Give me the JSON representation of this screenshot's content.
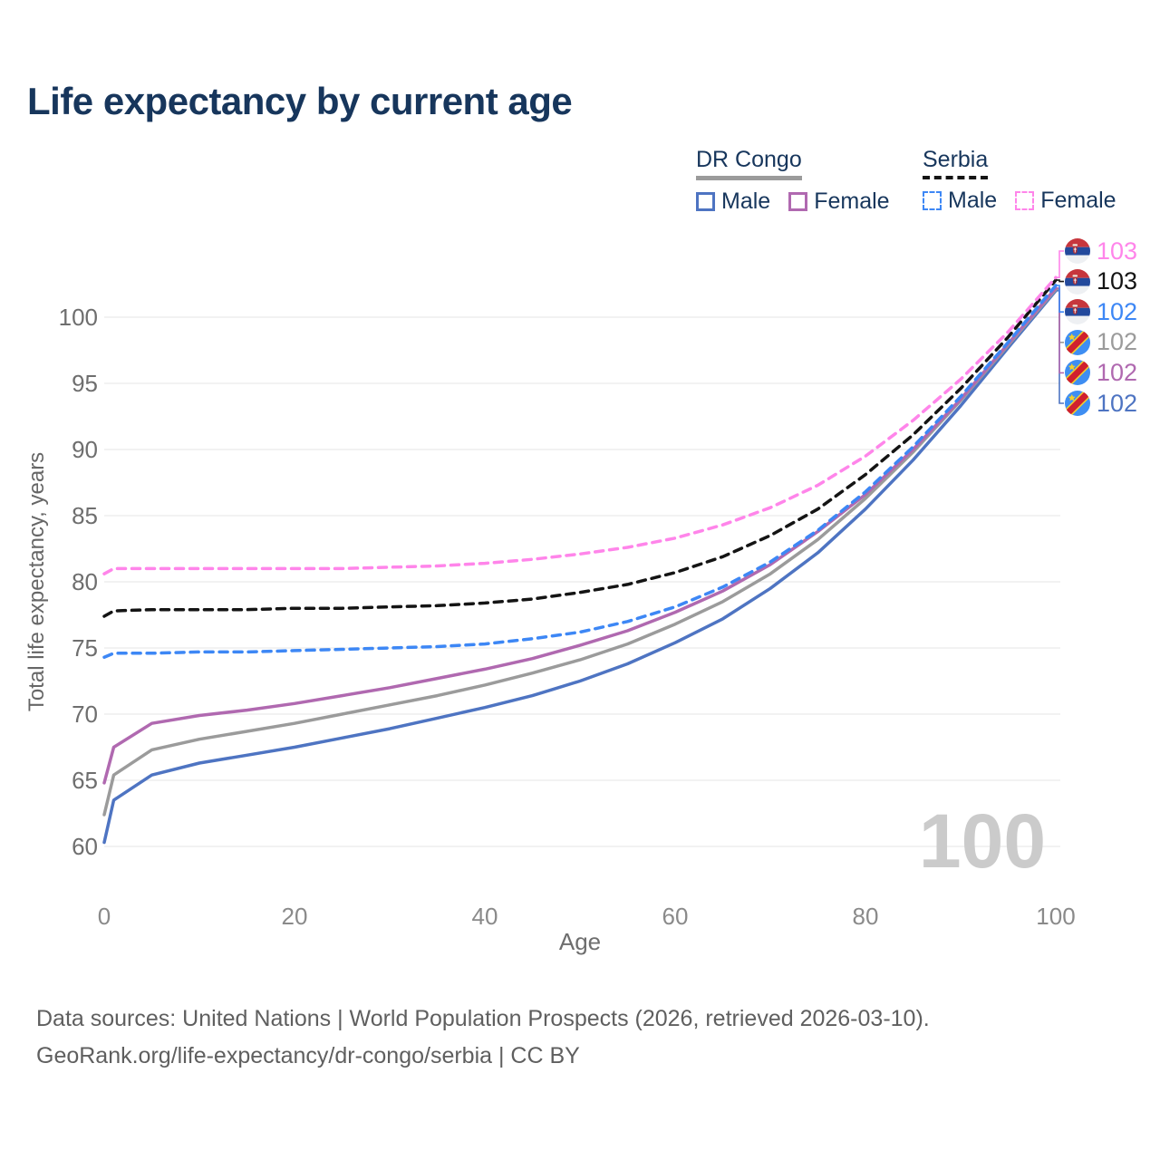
{
  "title": "Life expectancy by current age",
  "legend": {
    "groups": [
      {
        "label": "DR Congo",
        "line_style": "solid",
        "underline_color": "#9b9b9b",
        "items": [
          {
            "label": "Male",
            "color": "#4e74c2"
          },
          {
            "label": "Female",
            "color": "#b069b0"
          }
        ]
      },
      {
        "label": "Serbia",
        "line_style": "dashed",
        "underline_color": "#141414",
        "items": [
          {
            "label": "Male",
            "color": "#3d87f5"
          },
          {
            "label": "Female",
            "color": "#ff85ea"
          }
        ]
      }
    ]
  },
  "chart_data": {
    "type": "line",
    "title": "Life expectancy by current age",
    "xlabel": "Age",
    "ylabel": "Total life expectancy, years",
    "xticks": [
      0,
      20,
      40,
      60,
      80,
      100
    ],
    "yticks": [
      60,
      65,
      70,
      75,
      80,
      85,
      90,
      95,
      100
    ],
    "xlim": [
      0,
      100
    ],
    "ylim": [
      60,
      103
    ],
    "grid": "horizontal",
    "legend_position": "top-right",
    "watermark": "100",
    "x": [
      0,
      1,
      5,
      10,
      15,
      20,
      25,
      30,
      35,
      40,
      45,
      50,
      55,
      60,
      65,
      70,
      75,
      80,
      85,
      90,
      95,
      100
    ],
    "series": [
      {
        "name": "DR Congo Male",
        "country": "DR Congo",
        "sex": "Male",
        "color": "#4e74c2",
        "dash": false,
        "flag": "dr-congo",
        "end_label": "102",
        "end_label_color": "#4e74c2",
        "end_row": 5,
        "values": [
          60.3,
          63.5,
          65.4,
          66.3,
          66.9,
          67.5,
          68.2,
          68.9,
          69.7,
          70.5,
          71.4,
          72.5,
          73.8,
          75.4,
          77.2,
          79.5,
          82.2,
          85.5,
          89.2,
          93.3,
          97.7,
          102.0
        ]
      },
      {
        "name": "DR Congo Both sexes",
        "country": "DR Congo",
        "sex": "Both sexes",
        "color": "#9b9b9b",
        "dash": false,
        "flag": "dr-congo",
        "end_label": "102",
        "end_label_color": "#9b9b9b",
        "end_row": 3,
        "values": [
          62.4,
          65.4,
          67.3,
          68.1,
          68.7,
          69.3,
          70.0,
          70.7,
          71.4,
          72.2,
          73.1,
          74.1,
          75.3,
          76.8,
          78.5,
          80.6,
          83.2,
          86.3,
          89.8,
          93.7,
          97.9,
          102.1
        ]
      },
      {
        "name": "DR Congo Female",
        "country": "DR Congo",
        "sex": "Female",
        "color": "#b069b0",
        "dash": false,
        "flag": "dr-congo",
        "end_label": "102",
        "end_label_color": "#b069b0",
        "end_row": 4,
        "values": [
          64.8,
          67.5,
          69.3,
          69.9,
          70.3,
          70.8,
          71.4,
          72.0,
          72.7,
          73.4,
          74.2,
          75.2,
          76.3,
          77.7,
          79.3,
          81.3,
          83.8,
          86.6,
          90.0,
          93.8,
          98.0,
          102.2
        ]
      },
      {
        "name": "Serbia Male",
        "country": "Serbia",
        "sex": "Male",
        "color": "#3d87f5",
        "dash": true,
        "flag": "serbia",
        "end_label": "102",
        "end_label_color": "#3d87f5",
        "end_row": 2,
        "values": [
          74.3,
          74.6,
          74.6,
          74.7,
          74.7,
          74.8,
          74.9,
          75.0,
          75.1,
          75.3,
          75.7,
          76.2,
          77.0,
          78.1,
          79.6,
          81.5,
          83.9,
          86.8,
          90.2,
          94.0,
          98.1,
          102.4
        ]
      },
      {
        "name": "Serbia Both sexes",
        "country": "Serbia",
        "sex": "Both sexes",
        "color": "#141414",
        "dash": true,
        "flag": "serbia",
        "end_label": "103",
        "end_label_color": "#141414",
        "end_row": 1,
        "values": [
          77.4,
          77.8,
          77.9,
          77.9,
          77.9,
          78.0,
          78.0,
          78.1,
          78.2,
          78.4,
          78.7,
          79.2,
          79.8,
          80.7,
          81.9,
          83.5,
          85.5,
          88.1,
          91.1,
          94.6,
          98.5,
          102.8
        ]
      },
      {
        "name": "Serbia Female",
        "country": "Serbia",
        "sex": "Female",
        "color": "#ff85ea",
        "dash": true,
        "flag": "serbia",
        "end_label": "103",
        "end_label_color": "#ff85ea",
        "end_row": 0,
        "values": [
          80.6,
          81.0,
          81.0,
          81.0,
          81.0,
          81.0,
          81.0,
          81.1,
          81.2,
          81.4,
          81.7,
          82.1,
          82.6,
          83.3,
          84.3,
          85.6,
          87.3,
          89.5,
          92.2,
          95.3,
          98.9,
          103.0
        ]
      }
    ]
  },
  "footer": {
    "line1": "Data sources: United Nations | World Population Prospects (2026, retrieved 2026-03-10).",
    "line2": "GeoRank.org/life-expectancy/dr-congo/serbia | CC BY"
  }
}
